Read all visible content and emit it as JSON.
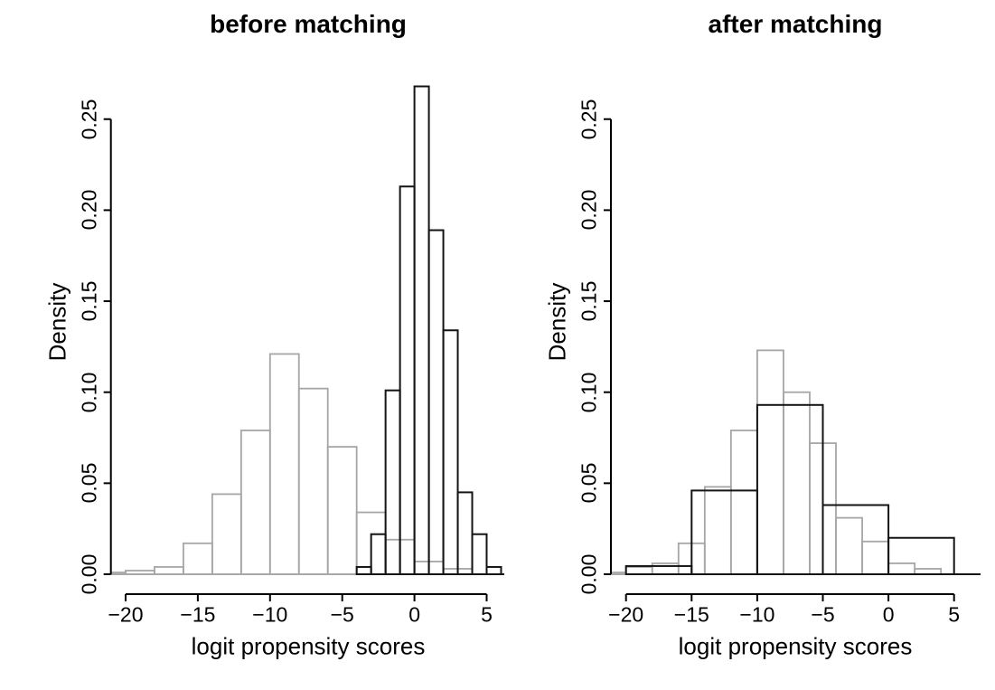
{
  "figure": {
    "background": "#ffffff"
  },
  "colors": {
    "axis": "#000000",
    "text": "#000000",
    "black_series": "#141414",
    "gray_series": "#a6a6a6"
  },
  "chart_data": [
    {
      "type": "histogram",
      "panel": "left",
      "title": "before matching",
      "xlabel": "logit propensity scores",
      "ylabel": "Density",
      "grid": false,
      "legend": false,
      "xlim": [
        -21,
        6.3
      ],
      "ylim": [
        0,
        0.272
      ],
      "x_ticks": [
        {
          "v": -20,
          "label": "−20"
        },
        {
          "v": -15,
          "label": "−15"
        },
        {
          "v": -10,
          "label": "−10"
        },
        {
          "v": -5,
          "label": "−5"
        },
        {
          "v": 0,
          "label": "0"
        },
        {
          "v": 5,
          "label": "5"
        }
      ],
      "y_ticks": [
        {
          "v": 0.0,
          "label": "0.00"
        },
        {
          "v": 0.05,
          "label": "0.05"
        },
        {
          "v": 0.1,
          "label": "0.10"
        },
        {
          "v": 0.15,
          "label": "0.15"
        },
        {
          "v": 0.2,
          "label": "0.20"
        },
        {
          "v": 0.25,
          "label": "0.25"
        }
      ],
      "series": [
        {
          "name": "gray-outline-histogram",
          "color": "#a6a6a6",
          "bin_start": -22,
          "bin_width": 2,
          "densities": [
            0.001,
            0.002,
            0.004,
            0.017,
            0.044,
            0.079,
            0.121,
            0.102,
            0.07,
            0.034,
            0.019,
            0.007,
            0.003
          ]
        },
        {
          "name": "black-outline-histogram",
          "color": "#141414",
          "bin_start": -4,
          "bin_width": 1,
          "densities": [
            0.004,
            0.022,
            0.101,
            0.213,
            0.268,
            0.189,
            0.134,
            0.045,
            0.022,
            0.004
          ]
        }
      ]
    },
    {
      "type": "histogram",
      "panel": "right",
      "title": "after matching",
      "xlabel": "logit propensity scores",
      "ylabel": "Density",
      "grid": false,
      "legend": false,
      "xlim": [
        -21.2,
        7.0
      ],
      "ylim": [
        0,
        0.272
      ],
      "x_ticks": [
        {
          "v": -20,
          "label": "−20"
        },
        {
          "v": -15,
          "label": "−15"
        },
        {
          "v": -10,
          "label": "−10"
        },
        {
          "v": -5,
          "label": "−5"
        },
        {
          "v": 0,
          "label": "0"
        },
        {
          "v": 5,
          "label": "5"
        }
      ],
      "y_ticks": [
        {
          "v": 0.0,
          "label": "0.00"
        },
        {
          "v": 0.05,
          "label": "0.05"
        },
        {
          "v": 0.1,
          "label": "0.10"
        },
        {
          "v": 0.15,
          "label": "0.15"
        },
        {
          "v": 0.2,
          "label": "0.20"
        },
        {
          "v": 0.25,
          "label": "0.25"
        }
      ],
      "series": [
        {
          "name": "gray-outline-histogram",
          "color": "#a6a6a6",
          "bin_start": -22,
          "bin_width": 2,
          "densities": [
            0.001,
            0.004,
            0.006,
            0.017,
            0.048,
            0.079,
            0.123,
            0.1,
            0.072,
            0.031,
            0.018,
            0.006,
            0.003
          ]
        },
        {
          "name": "black-outline-histogram",
          "color": "#141414",
          "bin_start": -20,
          "bin_width": 5,
          "densities": [
            0.0045,
            0.046,
            0.093,
            0.038,
            0.02
          ]
        }
      ]
    }
  ]
}
